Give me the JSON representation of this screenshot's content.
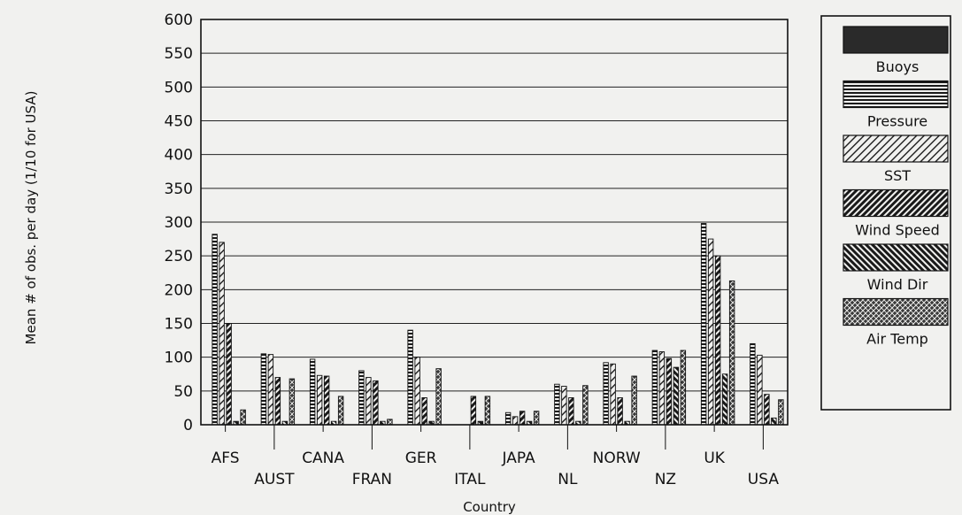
{
  "chart_data": {
    "type": "bar",
    "xlabel": "Country",
    "ylabel": "Mean # of obs. per day (1/10 for USA)",
    "ylim": [
      0,
      600
    ],
    "yticks": [
      0,
      50,
      100,
      150,
      200,
      250,
      300,
      350,
      400,
      450,
      500,
      550,
      600
    ],
    "grid": "horizontal",
    "legend_position": "right",
    "categories": [
      "AFS",
      "AUST",
      "CANA",
      "FRAN",
      "GER",
      "ITAL",
      "JAPA",
      "NL",
      "NORW",
      "NZ",
      "UK",
      "USA"
    ],
    "series": [
      {
        "name": "Buoys",
        "pattern": "solid",
        "values": [
          0,
          0,
          0,
          0,
          0,
          0,
          0,
          0,
          0,
          0,
          0,
          0
        ]
      },
      {
        "name": "Pressure",
        "pattern": "horizontal",
        "values": [
          282,
          105,
          97,
          80,
          140,
          0,
          18,
          60,
          92,
          110,
          298,
          120
        ]
      },
      {
        "name": "SST",
        "pattern": "diag-light",
        "values": [
          270,
          104,
          73,
          70,
          100,
          0,
          12,
          57,
          90,
          108,
          275,
          103
        ]
      },
      {
        "name": "Wind Speed",
        "pattern": "diag-heavy",
        "values": [
          150,
          70,
          72,
          65,
          40,
          42,
          20,
          40,
          40,
          98,
          250,
          45
        ]
      },
      {
        "name": "Wind Dir",
        "pattern": "diag-reverse",
        "values": [
          5,
          5,
          5,
          5,
          5,
          5,
          5,
          5,
          5,
          85,
          75,
          10
        ]
      },
      {
        "name": "Air Temp",
        "pattern": "cross",
        "values": [
          22,
          68,
          42,
          8,
          83,
          42,
          20,
          58,
          72,
          110,
          213,
          37
        ]
      }
    ],
    "colors": {
      "bar_fill": "#2b2b2b",
      "axis": "#111111",
      "grid": "#222222",
      "background": "#f1f1ef"
    }
  }
}
